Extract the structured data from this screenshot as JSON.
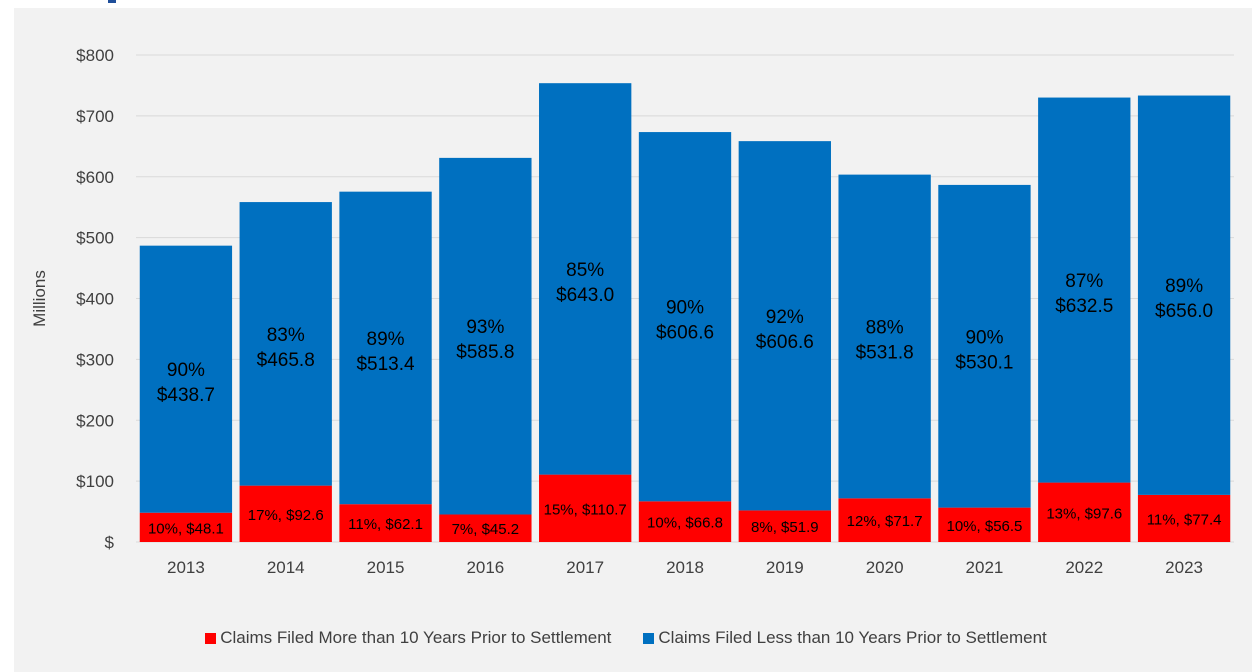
{
  "chart_data": {
    "type": "bar",
    "stacked": true,
    "categories": [
      "2013",
      "2014",
      "2015",
      "2016",
      "2017",
      "2018",
      "2019",
      "2020",
      "2021",
      "2022",
      "2023"
    ],
    "series": [
      {
        "name": "Claims Filed More than 10 Years Prior to Settlement",
        "color": "#ff0000",
        "values": [
          48.1,
          92.6,
          62.1,
          45.2,
          110.7,
          66.8,
          51.9,
          71.7,
          56.5,
          97.6,
          77.4
        ],
        "labels": [
          "10%, $48.1",
          "17%, $92.6",
          "11%, $62.1",
          "7%, $45.2",
          "15%, $110.7",
          "10%, $66.8",
          "8%, $51.9",
          "12%, $71.7",
          "10%, $56.5",
          "13%, $97.6",
          "11%, $77.4"
        ]
      },
      {
        "name": "Claims Filed Less than 10 Years Prior to Settlement",
        "color": "#0070c0",
        "values": [
          438.7,
          465.8,
          513.4,
          585.8,
          643.0,
          606.6,
          606.6,
          531.8,
          530.1,
          632.5,
          656.0
        ],
        "labels_pct": [
          "90%",
          "83%",
          "89%",
          "93%",
          "85%",
          "90%",
          "92%",
          "88%",
          "90%",
          "87%",
          "89%"
        ],
        "labels_val": [
          "$438.7",
          "$465.8",
          "$513.4",
          "$585.8",
          "$643.0",
          "$606.6",
          "$606.6",
          "$531.8",
          "$530.1",
          "$632.5",
          "$656.0"
        ]
      }
    ],
    "ylabel": "Millions",
    "ylim": [
      0,
      800
    ],
    "yticks": [
      0,
      100,
      200,
      300,
      400,
      500,
      600,
      700,
      800
    ],
    "ytick_labels": [
      "$",
      "$100",
      "$200",
      "$300",
      "$400",
      "$500",
      "$600",
      "$700",
      "$800"
    ],
    "grid": true,
    "legend_position": "bottom"
  }
}
